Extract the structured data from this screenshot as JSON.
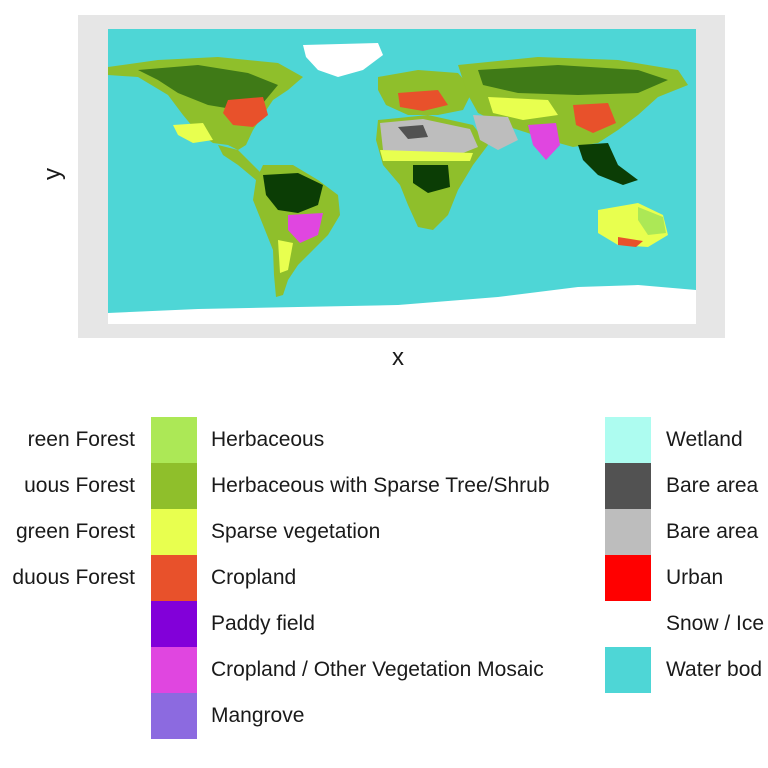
{
  "axes": {
    "x_title": "x",
    "y_title": "y"
  },
  "colors": {
    "water": "#4ed6d6",
    "snow_ice": "#ffffff",
    "panel_background": "#e6e6e6",
    "evergreen_forest_dark": "#0b3d05",
    "forest_green": "#3f7a17"
  },
  "legend": {
    "columns": [
      {
        "items": [
          {
            "label": "reen Forest",
            "color": ""
          },
          {
            "label": "uous Forest",
            "color": ""
          },
          {
            "label": "green Forest",
            "color": ""
          },
          {
            "label": "duous Forest",
            "color": ""
          }
        ]
      },
      {
        "items": [
          {
            "label": "Herbaceous",
            "color": "#ace856"
          },
          {
            "label": "Herbaceous with Sparse Tree/Shrub",
            "color": "#8fbf2b"
          },
          {
            "label": "Sparse vegetation",
            "color": "#e8ff4f"
          },
          {
            "label": "Cropland",
            "color": "#e8512b"
          },
          {
            "label": "Paddy field",
            "color": "#8200d9"
          },
          {
            "label": "Cropland / Other Vegetation Mosaic",
            "color": "#e046e0"
          },
          {
            "label": "Mangrove",
            "color": "#8c6ae0"
          }
        ]
      },
      {
        "items": [
          {
            "label": "Wetland",
            "color": "#adfcf0"
          },
          {
            "label": "Bare area",
            "color": "#525252"
          },
          {
            "label": "Bare area",
            "color": "#bdbdbd"
          },
          {
            "label": "Urban",
            "color": "#ff0000"
          },
          {
            "label": "Snow / Ice",
            "color": "#ffffff"
          },
          {
            "label": "Water bod",
            "color": "#4ed6d6"
          }
        ]
      }
    ]
  }
}
